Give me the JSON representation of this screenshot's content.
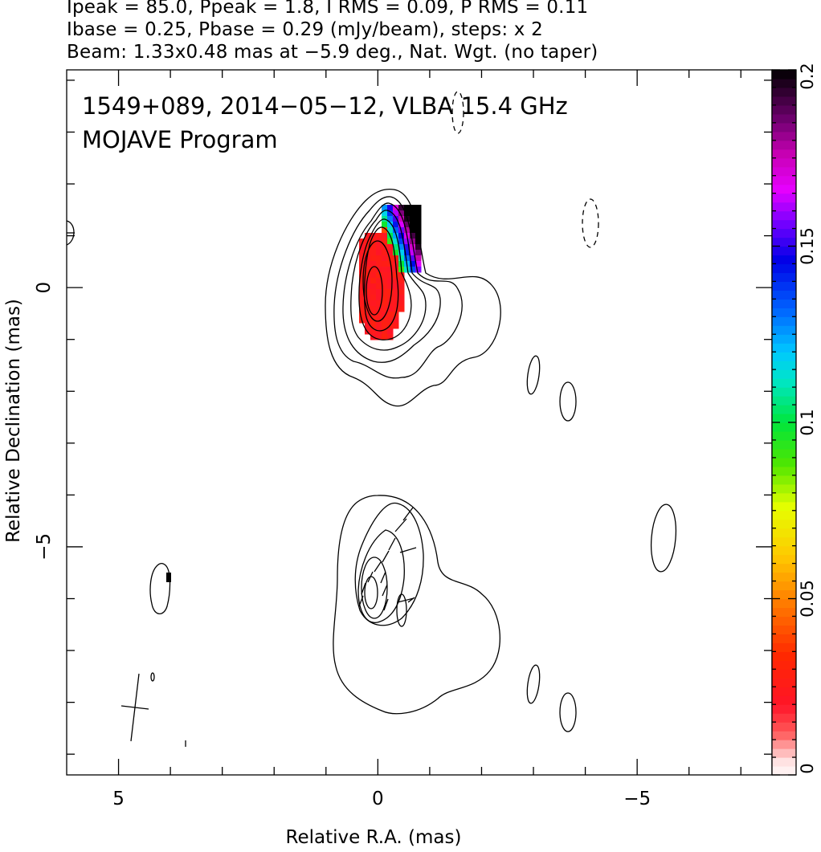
{
  "header": {
    "line1": "Ipeak = 85.0, Ppeak = 1.8, I RMS = 0.09, P RMS = 0.11",
    "line2": "Ibase = 0.25, Pbase = 0.29 (mJy/beam), steps: x 2",
    "line3": "Beam: 1.33x0.48 mas at −5.9 deg., Nat. Wgt. (no taper)"
  },
  "plot": {
    "title_line1": "1549+089, 2014−05−12, VLBA 15.4 GHz",
    "title_line2": "MOJAVE Program"
  },
  "chart_data": {
    "type": "contour",
    "xlabel": "Relative R.A. (mas)",
    "ylabel": "Relative Declination (mas)",
    "xlim": [
      6.0,
      -7.6
    ],
    "ylim": [
      -9.4,
      4.2
    ],
    "x_ticks": [
      5,
      0,
      -5
    ],
    "x_tick_labels": [
      "5",
      "0",
      "−5"
    ],
    "y_ticks": [
      0,
      -5
    ],
    "y_tick_labels": [
      "0",
      "−5"
    ],
    "colorbar": {
      "min": 0,
      "max": 0.2,
      "ticks": [
        0,
        0.05,
        0.1,
        0.15,
        0.2
      ],
      "tick_labels": [
        "0",
        "0.05",
        "0.1",
        "0.15",
        "0.2"
      ]
    },
    "top_panel": {
      "core_position": [
        0,
        0
      ],
      "total_intensity_contours": 8,
      "fractional_polarization_range": [
        0.02,
        0.2
      ]
    },
    "bottom_panel": {
      "core_position": [
        0,
        -5.9
      ],
      "contours": 5,
      "evpa_sticks": true
    },
    "beam": {
      "major_mas": 1.33,
      "minor_mas": 0.48,
      "pa_deg": -5.9
    }
  }
}
